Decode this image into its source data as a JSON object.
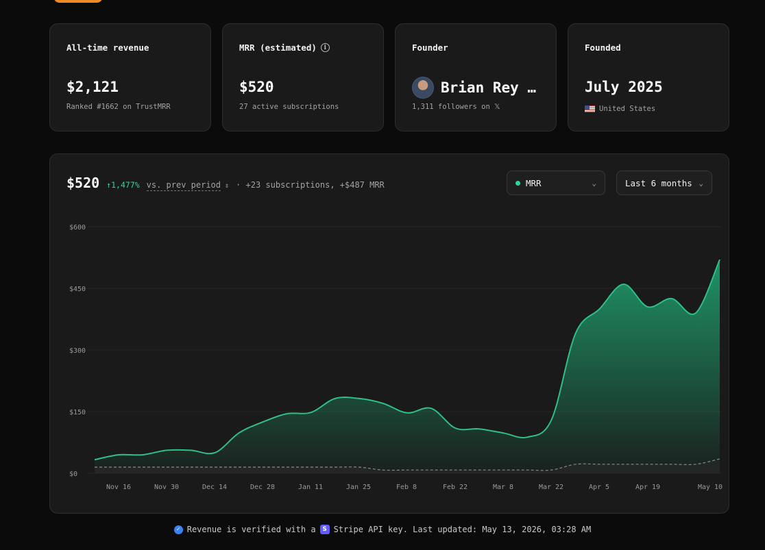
{
  "cards": [
    {
      "label": "All-time revenue",
      "value": "$2,121",
      "sub": "Ranked #1662 on TrustMRR"
    },
    {
      "label": "MRR (estimated)",
      "value": "$520",
      "sub": "27 active subscriptions"
    },
    {
      "label": "Founder",
      "value": "Brian Rey …",
      "sub": "1,311 followers on 𝕏"
    },
    {
      "label": "Founded",
      "value": "July 2025",
      "sub": "United States"
    }
  ],
  "icons": {
    "info": "info-icon",
    "avatar": "avatar",
    "flag": "us-flag-icon",
    "verified": "check-badge-icon",
    "stripe": "stripe-icon",
    "arrow_up": "arrow-up-icon",
    "chevron": "chevron-down-icon",
    "sort": "sort-icon"
  },
  "headline": {
    "value": "$520",
    "delta": "↑1,477%",
    "comparison": "vs. prev period",
    "summary": "· +23 subscriptions, +$487 MRR"
  },
  "controls": {
    "metric": "MRR",
    "range": "Last 6 months"
  },
  "colors": {
    "accent": "#34d399",
    "line": "#2fbf87",
    "baseline": "#8a8a8a"
  },
  "chart_data": {
    "type": "area",
    "y_ticks": [
      "$600",
      "$450",
      "$300",
      "$150",
      "$0"
    ],
    "ylim": [
      0,
      600
    ],
    "x_tick_labels": [
      "Nov 16",
      "Nov 30",
      "Dec 14",
      "Dec 28",
      "Jan 11",
      "Jan 25",
      "Feb 8",
      "Feb 22",
      "Mar 8",
      "Mar 22",
      "Apr 5",
      "Apr 19",
      "May 10"
    ],
    "x": [
      "Nov 9",
      "Nov 16",
      "Nov 23",
      "Nov 30",
      "Dec 7",
      "Dec 14",
      "Dec 21",
      "Dec 28",
      "Jan 4",
      "Jan 11",
      "Jan 18",
      "Jan 25",
      "Feb 1",
      "Feb 8",
      "Feb 15",
      "Feb 22",
      "Mar 1",
      "Mar 8",
      "Mar 15",
      "Mar 22",
      "Mar 29",
      "Apr 5",
      "Apr 12",
      "Apr 19",
      "Apr 26",
      "May 3",
      "May 10"
    ],
    "series": [
      {
        "name": "MRR",
        "values": [
          33,
          45,
          45,
          56,
          56,
          50,
          98,
          125,
          145,
          148,
          182,
          182,
          170,
          147,
          158,
          110,
          108,
          98,
          88,
          130,
          340,
          400,
          460,
          405,
          425,
          390,
          520
        ],
        "style": "solid"
      },
      {
        "values": [
          15,
          15,
          15,
          15,
          15,
          15,
          15,
          15,
          15,
          15,
          15,
          15,
          8,
          8,
          8,
          8,
          8,
          8,
          8,
          8,
          22,
          22,
          22,
          22,
          22,
          22,
          35
        ],
        "style": "dashed"
      }
    ],
    "grid": true
  },
  "footer": {
    "text_before": "Revenue is verified with a",
    "text_after": "Stripe API key. Last updated: May 13, 2026, 03:28 AM"
  }
}
